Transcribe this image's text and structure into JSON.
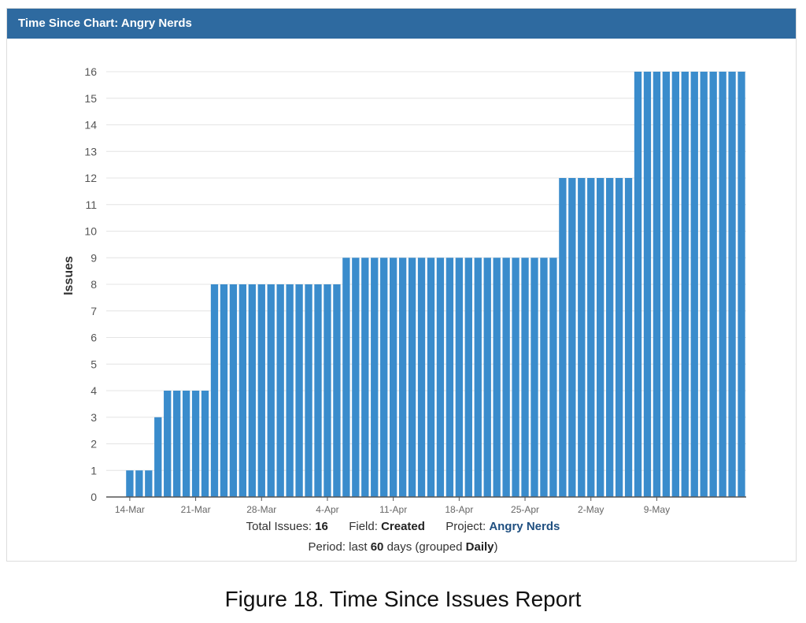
{
  "header": {
    "title": "Time Since Chart: Angry Nerds"
  },
  "chart_data": {
    "type": "bar",
    "ylabel": "Issues",
    "xlabel": "",
    "ylim": [
      0,
      16
    ],
    "yticks": [
      0,
      1,
      2,
      3,
      4,
      5,
      6,
      7,
      8,
      9,
      10,
      11,
      12,
      13,
      14,
      15,
      16
    ],
    "grid": true,
    "bar_color": "#3a8ccc",
    "x_tick_labels": [
      "14-Mar",
      "21-Mar",
      "28-Mar",
      "4-Apr",
      "11-Apr",
      "18-Apr",
      "25-Apr",
      "2-May",
      "9-May"
    ],
    "x_tick_index": [
      2,
      9,
      16,
      23,
      30,
      37,
      44,
      51,
      58
    ],
    "values": [
      0,
      0,
      1,
      1,
      1,
      3,
      4,
      4,
      4,
      4,
      4,
      8,
      8,
      8,
      8,
      8,
      8,
      8,
      8,
      8,
      8,
      8,
      8,
      8,
      8,
      9,
      9,
      9,
      9,
      9,
      9,
      9,
      9,
      9,
      9,
      9,
      9,
      9,
      9,
      9,
      9,
      9,
      9,
      9,
      9,
      9,
      9,
      9,
      12,
      12,
      12,
      12,
      12,
      12,
      12,
      12,
      16,
      16,
      16,
      16,
      16,
      16,
      16,
      16,
      16,
      16,
      16,
      16
    ]
  },
  "footer": {
    "total_label": "Total Issues:",
    "total_value": "16",
    "field_label": "Field:",
    "field_value": "Created",
    "project_label": "Project:",
    "project_value": "Angry Nerds",
    "period_label": "Period: last",
    "period_value": "60",
    "period_mid": "days (grouped",
    "period_group": "Daily",
    "period_end": ")"
  },
  "caption": "Figure 18. Time Since Issues Report"
}
